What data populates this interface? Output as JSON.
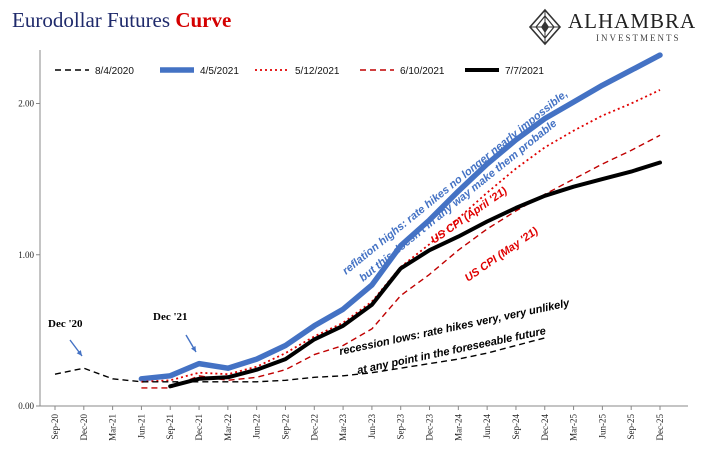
{
  "title": {
    "main": "Eurodollar Futures ",
    "accent": "Curve"
  },
  "logo": {
    "name": "ALHAMBRA",
    "sub": "INVESTMENTS"
  },
  "chart_data": {
    "type": "line",
    "x": [
      "Sep-20",
      "Dec-20",
      "Mar-21",
      "Jun-21",
      "Sep-21",
      "Dec-21",
      "Mar-22",
      "Jun-22",
      "Sep-22",
      "Dec-22",
      "Mar-23",
      "Jun-23",
      "Sep-23",
      "Dec-23",
      "Mar-24",
      "Jun-24",
      "Sep-24",
      "Dec-24",
      "Mar-25",
      "Jun-25",
      "Sep-25",
      "Dec-25"
    ],
    "ylim": [
      0,
      2.4
    ],
    "yticks": [
      "0.00",
      "1.00",
      "2.00"
    ],
    "series": [
      {
        "name": "8/4/2020",
        "color": "#000000",
        "style": "dashed",
        "values": [
          0.21,
          0.25,
          0.18,
          0.16,
          0.16,
          0.16,
          0.16,
          0.16,
          0.17,
          0.19,
          0.2,
          0.22,
          0.25,
          0.28,
          0.31,
          0.35,
          0.4,
          0.45,
          null,
          null,
          null,
          null
        ]
      },
      {
        "name": "4/5/2021",
        "color": "#4472c4",
        "style": "solid-thick",
        "values": [
          null,
          null,
          null,
          0.18,
          0.2,
          0.28,
          0.25,
          0.31,
          0.4,
          0.53,
          0.64,
          0.8,
          1.06,
          1.23,
          1.42,
          1.6,
          1.76,
          1.9,
          2.01,
          2.12,
          2.22,
          2.32
        ]
      },
      {
        "name": "5/12/2021",
        "color": "#e00000",
        "style": "dotted",
        "values": [
          null,
          null,
          null,
          0.16,
          0.17,
          0.22,
          0.21,
          0.26,
          0.35,
          0.46,
          0.55,
          0.69,
          0.92,
          1.07,
          1.24,
          1.41,
          1.57,
          1.71,
          1.82,
          1.92,
          2.0,
          2.09
        ]
      },
      {
        "name": "6/10/2021",
        "color": "#c00000",
        "style": "dashed",
        "values": [
          null,
          null,
          null,
          0.12,
          0.12,
          0.2,
          0.17,
          0.19,
          0.24,
          0.34,
          0.4,
          0.51,
          0.73,
          0.87,
          1.03,
          1.17,
          1.29,
          1.4,
          1.5,
          1.6,
          1.69,
          1.79
        ]
      },
      {
        "name": "7/7/2021",
        "color": "#000000",
        "style": "solid-thick",
        "values": [
          null,
          null,
          null,
          null,
          0.13,
          0.18,
          0.19,
          0.24,
          0.31,
          0.44,
          0.53,
          0.67,
          0.91,
          1.03,
          1.12,
          1.22,
          1.31,
          1.39,
          1.45,
          1.5,
          1.55,
          1.61
        ]
      }
    ],
    "annotations": [
      {
        "text": "Dec '20",
        "color": "#000000"
      },
      {
        "text": "Dec '21",
        "color": "#000000"
      },
      {
        "text": "reflation highs: rate hikes no longer nearly impossible,",
        "color": "#4472c4"
      },
      {
        "text": "but this doesn't in any way make them probable",
        "color": "#4472c4"
      },
      {
        "text": "US CPI (April '21)",
        "color": "#e00000"
      },
      {
        "text": "US CPI (May '21)",
        "color": "#e00000"
      },
      {
        "text": "recession lows: rate hikes very, very unlikely",
        "color": "#000000"
      },
      {
        "text": "at any point in the foreseeable future",
        "color": "#000000"
      }
    ]
  }
}
